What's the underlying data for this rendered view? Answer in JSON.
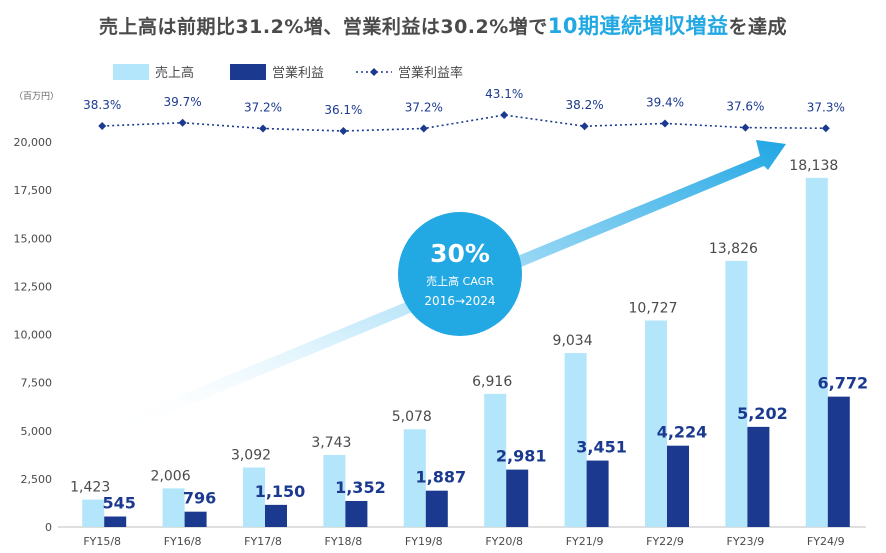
{
  "title": {
    "part1": "売上高は前期比31.2%増、営業利益は30.2%増で",
    "highlight": "10期連続増収増益",
    "part2": "を達成"
  },
  "chart_data": {
    "type": "bar",
    "unit_label": "（百万円）",
    "categories": [
      "FY15/8",
      "FY16/8",
      "FY17/8",
      "FY18/8",
      "FY19/8",
      "FY20/8",
      "FY21/9",
      "FY22/9",
      "FY23/9",
      "FY24/9"
    ],
    "series": [
      {
        "name": "売上高",
        "values": [
          1423,
          2006,
          3092,
          3743,
          5078,
          6916,
          9034,
          10727,
          13826,
          18138
        ],
        "labels": [
          "1,423",
          "2,006",
          "3,092",
          "3,743",
          "5,078",
          "6,916",
          "9,034",
          "10,727",
          "13,826",
          "18,138"
        ],
        "color": "#b3e5fb"
      },
      {
        "name": "営業利益",
        "values": [
          545,
          796,
          1150,
          1352,
          1887,
          2981,
          3451,
          4224,
          5202,
          6772
        ],
        "labels": [
          "545",
          "796",
          "1,150",
          "1,352",
          "1,887",
          "2,981",
          "3,451",
          "4,224",
          "5,202",
          "6,772"
        ],
        "color": "#1b3a8f"
      },
      {
        "name": "営業利益率",
        "type": "line",
        "values": [
          38.3,
          39.7,
          37.2,
          36.1,
          37.2,
          43.1,
          38.2,
          39.4,
          37.6,
          37.3
        ],
        "labels": [
          "38.3%",
          "39.7%",
          "37.2%",
          "36.1%",
          "37.2%",
          "43.1%",
          "38.2%",
          "39.4%",
          "37.6%",
          "37.3%"
        ],
        "color": "#1b3a8f"
      }
    ],
    "ylim": [
      0,
      20000
    ],
    "yticks": [
      0,
      2500,
      5000,
      7500,
      10000,
      12500,
      15000,
      17500,
      20000
    ],
    "ytick_labels": [
      "0",
      "2,500",
      "5,000",
      "7,500",
      "10,000",
      "12,500",
      "15,000",
      "17,500",
      "20,000"
    ],
    "legend": [
      "売上高",
      "営業利益",
      "営業利益率"
    ],
    "legend_position": "top-left",
    "annotation": {
      "value": "30%",
      "label": "売上高 CAGR",
      "period": "2016→2024"
    }
  },
  "colors": {
    "sales": "#b3e5fb",
    "profit": "#1b3a8f",
    "rate": "#1b3a8f",
    "accent": "#22a8e3",
    "text": "#4a4a4a",
    "axis": "#bfbfbf"
  }
}
